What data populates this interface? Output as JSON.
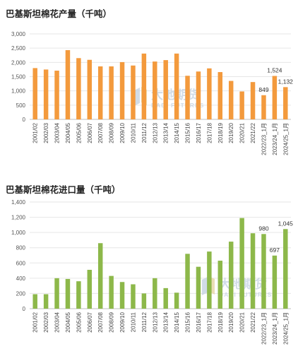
{
  "watermark": {
    "name": "大地期货",
    "sub": "DADI FUTURES",
    "color": "#c9d6e3"
  },
  "chart_data": [
    {
      "type": "bar",
      "title": "巴基斯坦棉花产量（千吨）",
      "color": "#f39a3d",
      "ylim": [
        0,
        3000
      ],
      "yticks": [
        "0",
        "500",
        "1,000",
        "1,500",
        "2,000",
        "2,500",
        "3,000"
      ],
      "grid": true,
      "categories": [
        "2001/02",
        "2002/03",
        "2003/04",
        "2004/05",
        "2005/06",
        "2006/07",
        "2007/08",
        "2008/09",
        "2009/10",
        "2010/11",
        "2011/12",
        "2012/13",
        "2013/14",
        "2014/15",
        "2015/16",
        "2016/17",
        "2017/18",
        "2018/19",
        "2019/20",
        "2020/21",
        "2021/22",
        "2022/23_1月",
        "2023/24_1月",
        "2024/25_1月"
      ],
      "values": [
        1800,
        1750,
        1710,
        2430,
        2150,
        2090,
        1860,
        1860,
        2010,
        1890,
        2310,
        2030,
        2080,
        2310,
        1530,
        1680,
        1790,
        1660,
        1350,
        980,
        1310,
        849,
        1524,
        1132
      ],
      "data_labels": [
        {
          "index": 21,
          "text": "849"
        },
        {
          "index": 22,
          "text": "1,524"
        },
        {
          "index": 23,
          "text": "1,132"
        }
      ]
    },
    {
      "type": "bar",
      "title": "巴基斯坦棉花进口量（千吨）",
      "color": "#8db84a",
      "ylim": [
        0,
        1400
      ],
      "yticks": [
        "0",
        "200",
        "400",
        "600",
        "800",
        "1,000",
        "1,200",
        "1,400"
      ],
      "grid": true,
      "categories": [
        "2001/02",
        "2002/03",
        "2003/04",
        "2004/05",
        "2005/06",
        "2006/07",
        "2007/08",
        "2008/09",
        "2009/10",
        "2010/11",
        "2011/12",
        "2012/13",
        "2013/14",
        "2014/15",
        "2015/16",
        "2016/17",
        "2017/18",
        "2018/19",
        "2019/20",
        "2020/21",
        "2021/22",
        "2022/23_1月",
        "2023/24_1月",
        "2024/25_1月"
      ],
      "values": [
        190,
        190,
        400,
        390,
        360,
        510,
        860,
        430,
        350,
        320,
        200,
        400,
        270,
        210,
        720,
        550,
        750,
        630,
        880,
        1190,
        990,
        980,
        697,
        1045
      ],
      "data_labels": [
        {
          "index": 21,
          "text": "980"
        },
        {
          "index": 22,
          "text": "697"
        },
        {
          "index": 23,
          "text": "1,045"
        }
      ]
    }
  ]
}
